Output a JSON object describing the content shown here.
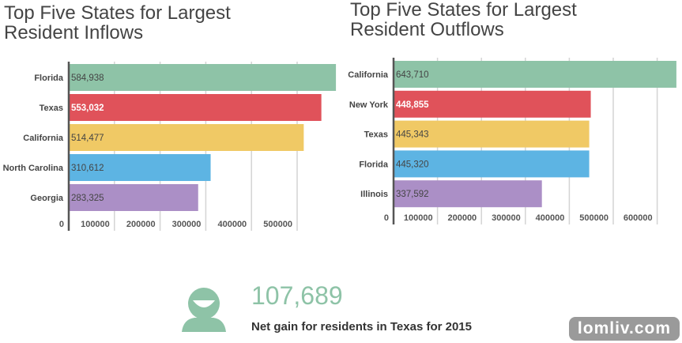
{
  "chart_data": [
    {
      "type": "bar",
      "orientation": "horizontal",
      "title": "Top Five States for Largest Resident Inflows",
      "categories": [
        "Florida",
        "Texas",
        "California",
        "North Carolina",
        "Georgia"
      ],
      "values": [
        584938,
        553032,
        514477,
        310612,
        283325
      ],
      "data_labels": [
        "584,938",
        "553,032",
        "514,477",
        "310,612",
        "283,325"
      ],
      "colors": [
        "#8ec3a7",
        "#e0525a",
        "#f0c965",
        "#5db4e3",
        "#ab8fc6"
      ],
      "label_colors": [
        "#444",
        "#ffffff",
        "#444",
        "#444",
        "#444"
      ],
      "xticks": [
        "0",
        "100000",
        "200000",
        "300000",
        "400000",
        "500000"
      ],
      "xlim": [
        0,
        600000
      ],
      "grid": true
    },
    {
      "type": "bar",
      "orientation": "horizontal",
      "title": "Top Five States for Largest Resident Outflows",
      "categories": [
        "California",
        "New York",
        "Texas",
        "Florida",
        "Illinois"
      ],
      "values": [
        643710,
        448855,
        445343,
        445320,
        337592
      ],
      "data_labels": [
        "643,710",
        "448,855",
        "445,343",
        "445,320",
        "337,592"
      ],
      "colors": [
        "#8ec3a7",
        "#e0525a",
        "#f0c965",
        "#5db4e3",
        "#ab8fc6"
      ],
      "label_colors": [
        "#444",
        "#ffffff",
        "#444",
        "#444",
        "#444"
      ],
      "xticks": [
        "0",
        "100000",
        "200000",
        "300000",
        "400000",
        "500000",
        "600000"
      ],
      "xlim": [
        0,
        660000
      ],
      "grid": true
    }
  ],
  "titles": {
    "left": [
      "Top Five States for Largest",
      "Resident Inflows"
    ],
    "right": [
      "Top Five States for Largest",
      "Resident Outflows"
    ]
  },
  "stat": {
    "value": "107,689",
    "caption": "Net gain for residents in Texas for 2015",
    "icon": "person-icon",
    "color": "#8ec3a7"
  },
  "watermark": "lomliv.com"
}
